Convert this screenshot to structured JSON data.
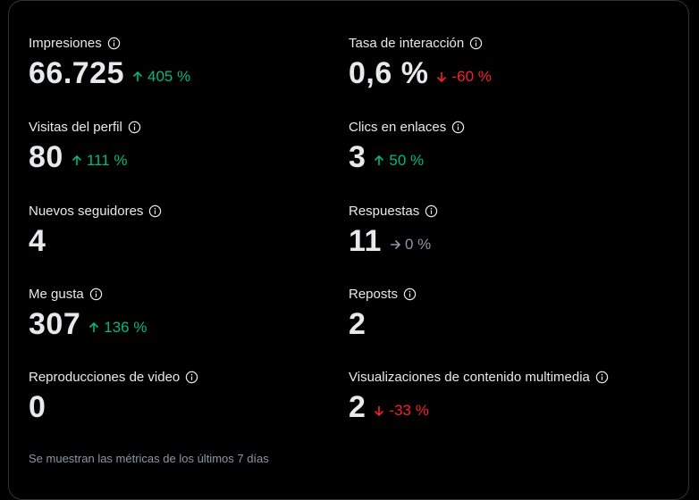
{
  "metrics": {
    "impressions": {
      "label": "Impresiones",
      "value": "66.725",
      "change": "405 %",
      "direction": "up"
    },
    "engagement_rate": {
      "label": "Tasa de interacción",
      "value": "0,6 %",
      "change": "-60 %",
      "direction": "down"
    },
    "profile_visits": {
      "label": "Visitas del perfil",
      "value": "80",
      "change": "111 %",
      "direction": "up"
    },
    "link_clicks": {
      "label": "Clics en enlaces",
      "value": "3",
      "change": "50 %",
      "direction": "up"
    },
    "new_followers": {
      "label": "Nuevos seguidores",
      "value": "4"
    },
    "replies": {
      "label": "Respuestas",
      "value": "11",
      "change": "0 %",
      "direction": "flat"
    },
    "likes": {
      "label": "Me gusta",
      "value": "307",
      "change": "136 %",
      "direction": "up"
    },
    "reposts": {
      "label": "Reposts",
      "value": "2"
    },
    "video_views": {
      "label": "Reproducciones de video",
      "value": "0"
    },
    "media_views": {
      "label": "Visualizaciones de contenido multimedia",
      "value": "2",
      "change": "-33 %",
      "direction": "down"
    }
  },
  "footnote": "Se muestran las métricas de los últimos 7 días",
  "colors": {
    "background": "#000000",
    "text": "#e7e9ea",
    "positive": "#00ba7c",
    "negative": "#f4212e",
    "neutral": "#8b98a5"
  }
}
